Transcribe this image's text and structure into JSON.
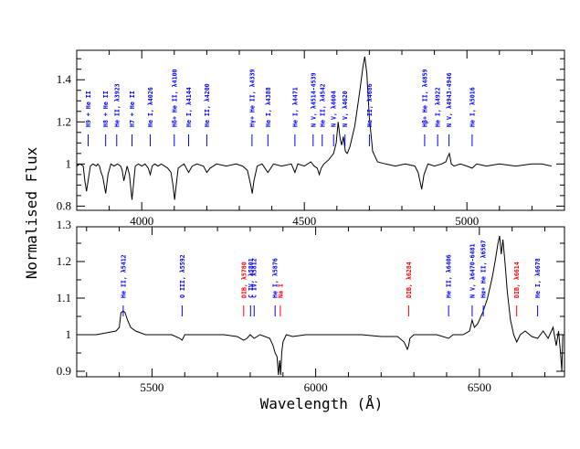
{
  "figure": {
    "ylabel": "Normalised Flux",
    "xlabel": "Wavelength (Å)",
    "colors": {
      "axes": "#000000",
      "he_lines": "#0000ff",
      "dib_lines": "#ff0000",
      "spectrum": "#000000"
    }
  },
  "chart_data": [
    {
      "type": "line",
      "panel": "top",
      "xlim": [
        3800,
        5300
      ],
      "ylim": [
        0.78,
        1.54
      ],
      "xticks": [
        4000,
        4500,
        5000
      ],
      "yticks": [
        0.8,
        1,
        1.2,
        1.4
      ],
      "series": [
        {
          "spectrum": true,
          "x": [
            3800,
            3810,
            3820,
            3825,
            3830,
            3836,
            3842,
            3850,
            3860,
            3865,
            3870,
            3875,
            3880,
            3889,
            3896,
            3905,
            3915,
            3925,
            3935,
            3940,
            3945,
            3955,
            3962,
            3966,
            3970,
            3975,
            3980,
            3990,
            4000,
            4010,
            4020,
            4026,
            4032,
            4040,
            4050,
            4060,
            4070,
            4080,
            4090,
            4096,
            4101,
            4106,
            4112,
            4120,
            4130,
            4144,
            4155,
            4170,
            4190,
            4200,
            4210,
            4230,
            4260,
            4290,
            4310,
            4325,
            4335,
            4340,
            4345,
            4355,
            4370,
            4388,
            4405,
            4430,
            4460,
            4471,
            4480,
            4500,
            4520,
            4530,
            4540,
            4546,
            4552,
            4560,
            4575,
            4590,
            4598,
            4604,
            4610,
            4615,
            4620,
            4626,
            4632,
            4640,
            4655,
            4670,
            4680,
            4686,
            4692,
            4700,
            4710,
            4725,
            4750,
            4780,
            4810,
            4840,
            4850,
            4861,
            4868,
            4880,
            4900,
            4922,
            4935,
            4940,
            4946,
            4952,
            4960,
            4980,
            5000,
            5016,
            5030,
            5060,
            5100,
            5150,
            5200,
            5230,
            5260
          ],
          "y": [
            0.99,
            1.0,
            0.99,
            0.92,
            0.87,
            0.93,
            0.99,
            1.0,
            0.99,
            1.0,
            0.99,
            0.96,
            0.94,
            0.86,
            0.95,
            1.0,
            0.99,
            1.0,
            0.99,
            0.97,
            0.92,
            0.99,
            0.95,
            0.89,
            0.83,
            0.91,
            0.99,
            1.0,
            0.99,
            1.0,
            0.98,
            0.95,
            0.99,
            1.0,
            0.99,
            1.0,
            0.99,
            0.98,
            0.96,
            0.9,
            0.83,
            0.9,
            0.98,
            0.99,
            1.0,
            0.96,
            0.99,
            1.0,
            0.99,
            0.96,
            0.98,
            1.0,
            0.99,
            1.0,
            0.99,
            0.97,
            0.9,
            0.86,
            0.92,
            0.99,
            1.0,
            0.96,
            1.0,
            0.99,
            1.0,
            0.96,
            1.0,
            0.99,
            1.01,
            0.99,
            0.98,
            0.95,
            0.98,
            1.0,
            1.02,
            1.05,
            1.1,
            1.2,
            1.12,
            1.09,
            1.13,
            1.06,
            1.05,
            1.08,
            1.18,
            1.34,
            1.46,
            1.51,
            1.43,
            1.22,
            1.06,
            1.01,
            1.0,
            0.99,
            1.0,
            0.99,
            0.96,
            0.88,
            0.95,
            1.0,
            0.99,
            1.0,
            1.01,
            1.03,
            1.05,
            1.0,
            0.99,
            1.0,
            0.99,
            0.98,
            1.0,
            0.99,
            1.0,
            0.99,
            1.0,
            1.0,
            0.99
          ]
        }
      ],
      "line_ids": [
        {
          "label": "H9 + He II",
          "wave": 3835,
          "color": "blue"
        },
        {
          "label": "H8 + He II",
          "wave": 3889,
          "color": "blue"
        },
        {
          "label": "He II, λ3923",
          "wave": 3923,
          "color": "blue"
        },
        {
          "label": "H7 + He II",
          "wave": 3970,
          "color": "blue"
        },
        {
          "label": "He I, λ4026",
          "wave": 4026,
          "color": "blue"
        },
        {
          "label": "Hδ+ He II, λ4100",
          "wave": 4100,
          "color": "blue"
        },
        {
          "label": "He I, λ4144",
          "wave": 4144,
          "color": "blue"
        },
        {
          "label": "He II, λ4200",
          "wave": 4200,
          "color": "blue"
        },
        {
          "label": "Hγ+ He II, λ4339",
          "wave": 4339,
          "color": "blue"
        },
        {
          "label": "He I, λ4388",
          "wave": 4388,
          "color": "blue"
        },
        {
          "label": "He I, λ4471",
          "wave": 4471,
          "color": "blue"
        },
        {
          "label": "N V, λ4514-4539",
          "wave": 4527,
          "color": "blue"
        },
        {
          "label": "He II, λ4542",
          "wave": 4555,
          "color": "blue"
        },
        {
          "label": "N V, λ4604",
          "wave": 4590,
          "color": "blue"
        },
        {
          "label": "N V, λ4620",
          "wave": 4625,
          "color": "blue"
        },
        {
          "label": "He II, λ4686",
          "wave": 4700,
          "color": "blue"
        },
        {
          "label": "Hβ+ He II, λ4859",
          "wave": 4870,
          "color": "blue"
        },
        {
          "label": "He I, λ4922",
          "wave": 4910,
          "color": "blue"
        },
        {
          "label": "N V, λ4943-4946",
          "wave": 4945,
          "color": "blue"
        },
        {
          "label": "He I, λ5016",
          "wave": 5016,
          "color": "blue"
        }
      ]
    },
    {
      "type": "line",
      "panel": "bottom",
      "xlim": [
        5270,
        6760
      ],
      "ylim": [
        0.885,
        1.295
      ],
      "xticks": [
        5500,
        6000,
        6500
      ],
      "yticks": [
        0.9,
        1,
        1.1,
        1.2,
        1.3
      ],
      "series": [
        {
          "spectrum": true,
          "x": [
            5280,
            5300,
            5330,
            5360,
            5390,
            5400,
            5405,
            5412,
            5418,
            5425,
            5435,
            5450,
            5480,
            5520,
            5560,
            5585,
            5592,
            5600,
            5640,
            5680,
            5720,
            5760,
            5780,
            5790,
            5800,
            5812,
            5830,
            5860,
            5870,
            5876,
            5882,
            5886,
            5890,
            5893,
            5896,
            5900,
            5910,
            5930,
            5970,
            6020,
            6080,
            6140,
            6200,
            6250,
            6270,
            6280,
            6284,
            6288,
            6300,
            6330,
            6370,
            6406,
            6420,
            6450,
            6470,
            6478,
            6485,
            6495,
            6510,
            6525,
            6540,
            6550,
            6557,
            6562,
            6567,
            6572,
            6578,
            6585,
            6595,
            6605,
            6614,
            6625,
            6640,
            6660,
            6678,
            6695,
            6710,
            6725,
            6735,
            6742,
            6748,
            6752,
            6755
          ],
          "y": [
            1.0,
            1.0,
            1.0,
            1.005,
            1.01,
            1.02,
            1.06,
            1.065,
            1.06,
            1.04,
            1.02,
            1.01,
            1.0,
            1.0,
            1.0,
            0.99,
            0.985,
            1.0,
            1.0,
            1.0,
            1.0,
            0.995,
            0.985,
            0.99,
            1.0,
            0.99,
            1.0,
            0.99,
            0.97,
            0.95,
            0.94,
            0.89,
            0.93,
            0.89,
            0.95,
            0.98,
            1.0,
            0.995,
            1.0,
            1.0,
            1.0,
            1.0,
            0.995,
            0.995,
            0.98,
            0.96,
            0.97,
            0.99,
            1.0,
            1.0,
            1.0,
            0.99,
            1.0,
            1.0,
            1.01,
            1.04,
            1.02,
            1.03,
            1.06,
            1.1,
            1.16,
            1.21,
            1.25,
            1.27,
            1.22,
            1.26,
            1.2,
            1.12,
            1.04,
            1.0,
            0.98,
            1.0,
            1.01,
            0.995,
            0.99,
            1.01,
            0.99,
            1.02,
            0.97,
            1.01,
            0.95,
            0.9,
            1.0
          ]
        }
      ],
      "line_ids": [
        {
          "label": "He II, λ5412",
          "wave": 5412,
          "color": "blue"
        },
        {
          "label": "O III, λ5592",
          "wave": 5592,
          "color": "blue"
        },
        {
          "label": "DIB, λ5780",
          "wave": 5780,
          "color": "red"
        },
        {
          "label": "C IV, λ5801",
          "wave": 5801,
          "color": "blue"
        },
        {
          "label": "C IV, λ5812",
          "wave": 5812,
          "color": "blue"
        },
        {
          "label": "He I, λ5876",
          "wave": 5876,
          "color": "blue"
        },
        {
          "label": "Na I",
          "wave": 5892,
          "color": "red"
        },
        {
          "label": "DIB, λ6284",
          "wave": 6284,
          "color": "red"
        },
        {
          "label": "He II, λ6406",
          "wave": 6406,
          "color": "blue"
        },
        {
          "label": "N V, λ6470-6481",
          "wave": 6478,
          "color": "blue"
        },
        {
          "label": "Hα+ He II, λ6567",
          "wave": 6512,
          "color": "blue"
        },
        {
          "label": "DIB, λ6614",
          "wave": 6614,
          "color": "red"
        },
        {
          "label": "He I, λ6678",
          "wave": 6678,
          "color": "blue"
        }
      ]
    }
  ]
}
